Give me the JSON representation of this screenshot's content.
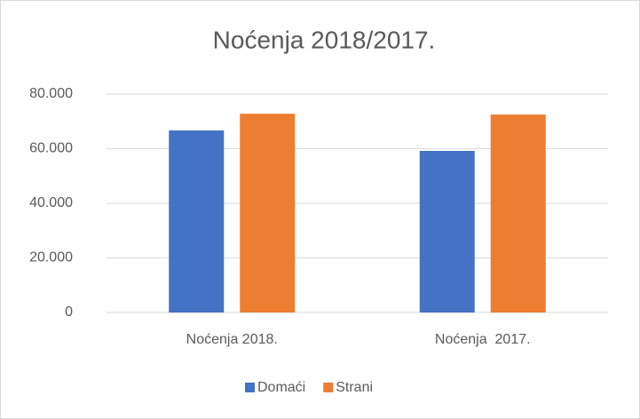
{
  "chart_data": {
    "type": "bar",
    "title": "Noćenja 2018/2017.",
    "categories": [
      "Noćenja 2018.",
      "Noćenja  2017."
    ],
    "series": [
      {
        "name": "Domaći",
        "color": "#4472c4",
        "values": [
          66700,
          59200
        ]
      },
      {
        "name": "Strani",
        "color": "#ed7d31",
        "values": [
          72800,
          72500
        ]
      }
    ],
    "ylim": [
      0,
      80000
    ],
    "yticks": [
      0,
      {
        "value": 20000,
        "label": "20.000"
      },
      {
        "value": 40000,
        "label": "40.000"
      },
      {
        "value": 60000,
        "label": "60.000"
      },
      {
        "value": 80000,
        "label": "80.000"
      }
    ],
    "grid": true,
    "legend": "bottom"
  }
}
